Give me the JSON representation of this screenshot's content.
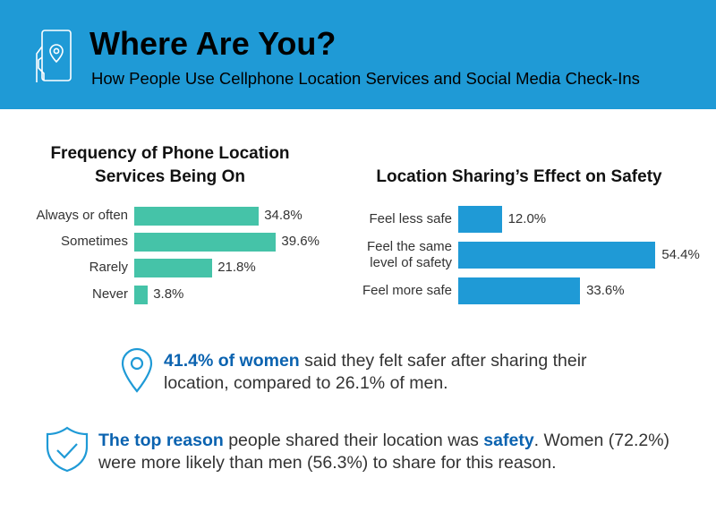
{
  "header": {
    "title": "Where Are You?",
    "subtitle": "How People Use Cellphone Location Services and Social Media Check-Ins",
    "icon": "phone-location-icon",
    "color": "#1f9ad6"
  },
  "chart_data": [
    {
      "type": "bar",
      "orientation": "horizontal",
      "title": "Frequency of Phone Location Services Being On",
      "title_lines": [
        "Frequency of Phone Location",
        "Services Being On"
      ],
      "categories": [
        "Always or often",
        "Sometimes",
        "Rarely",
        "Never"
      ],
      "values": [
        34.8,
        39.6,
        21.8,
        3.8
      ],
      "labels": [
        "34.8%",
        "39.6%",
        "21.8%",
        "3.8%"
      ],
      "color": "#45c3a8",
      "unit": "%"
    },
    {
      "type": "bar",
      "orientation": "horizontal",
      "title": "Location Sharing’s Effect on Safety",
      "categories": [
        "Feel less safe",
        "Feel the same level of safety",
        "Feel more safe"
      ],
      "category_lines": [
        [
          "Feel less safe"
        ],
        [
          "Feel the same",
          "level of safety"
        ],
        [
          "Feel more safe"
        ]
      ],
      "values": [
        12.0,
        54.4,
        33.6
      ],
      "labels": [
        "12.0%",
        "54.4%",
        "33.6%"
      ],
      "color": "#1f9ad6",
      "unit": "%"
    }
  ],
  "callouts": [
    {
      "icon": "map-pin-icon",
      "bold": "41.4% of women",
      "text": " said they felt safer after sharing their location, compared to 26.1% of men."
    },
    {
      "icon": "shield-check-icon",
      "bold": "The top reason",
      "text": " people shared their location was ",
      "bold2": "safety",
      "text2": ". Women (72.2%) were more likely than men (56.3%) to share for this reason."
    }
  ],
  "accent": "#0b63b0"
}
